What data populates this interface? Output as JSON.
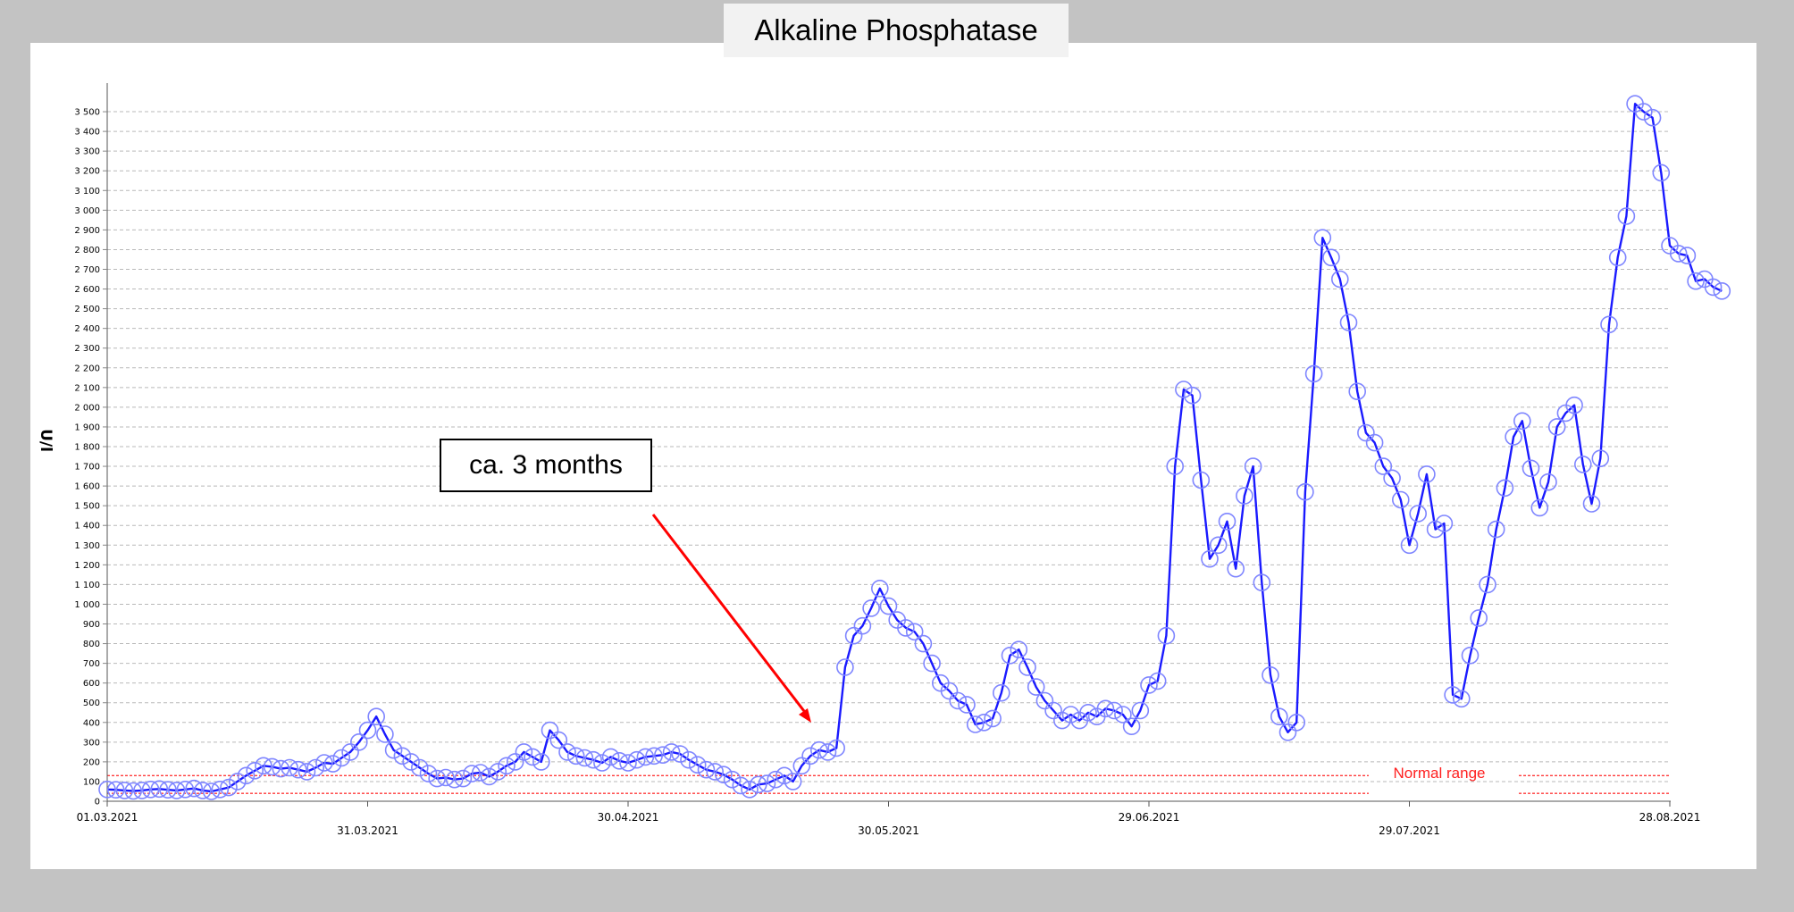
{
  "chart_data": {
    "type": "line",
    "title": "Alkaline Phosphatase",
    "ylabel": "U/l",
    "xlabel": "",
    "ylim": [
      0,
      3600
    ],
    "ytick_step": 100,
    "xlim": [
      "2021-03-01",
      "2021-08-28"
    ],
    "xtick_labels": [
      "01.03.2021",
      "31.03.2021",
      "30.04.2021",
      "30.05.2021",
      "29.06.2021",
      "29.07.2021",
      "28.08.2021"
    ],
    "xtick_dates": [
      "2021-03-01",
      "2021-03-31",
      "2021-04-30",
      "2021-05-30",
      "2021-06-29",
      "2021-07-29",
      "2021-08-28"
    ],
    "grid": true,
    "series": [
      {
        "color": "#1a1aff",
        "marker": "open-circle",
        "points": [
          [
            "2021-03-01",
            60
          ],
          [
            "2021-03-02",
            58
          ],
          [
            "2021-03-03",
            55
          ],
          [
            "2021-03-04",
            52
          ],
          [
            "2021-03-05",
            55
          ],
          [
            "2021-03-06",
            60
          ],
          [
            "2021-03-07",
            62
          ],
          [
            "2021-03-08",
            58
          ],
          [
            "2021-03-09",
            55
          ],
          [
            "2021-03-10",
            60
          ],
          [
            "2021-03-11",
            65
          ],
          [
            "2021-03-12",
            55
          ],
          [
            "2021-03-13",
            50
          ],
          [
            "2021-03-14",
            60
          ],
          [
            "2021-03-15",
            70
          ],
          [
            "2021-03-16",
            100
          ],
          [
            "2021-03-17",
            130
          ],
          [
            "2021-03-18",
            155
          ],
          [
            "2021-03-19",
            180
          ],
          [
            "2021-03-20",
            175
          ],
          [
            "2021-03-21",
            165
          ],
          [
            "2021-03-22",
            170
          ],
          [
            "2021-03-23",
            160
          ],
          [
            "2021-03-24",
            150
          ],
          [
            "2021-03-25",
            170
          ],
          [
            "2021-03-26",
            195
          ],
          [
            "2021-03-27",
            190
          ],
          [
            "2021-03-28",
            220
          ],
          [
            "2021-03-29",
            250
          ],
          [
            "2021-03-30",
            300
          ],
          [
            "2021-03-31",
            360
          ],
          [
            "2021-04-01",
            430
          ],
          [
            "2021-04-02",
            340
          ],
          [
            "2021-04-03",
            260
          ],
          [
            "2021-04-04",
            230
          ],
          [
            "2021-04-05",
            200
          ],
          [
            "2021-04-06",
            170
          ],
          [
            "2021-04-07",
            140
          ],
          [
            "2021-04-08",
            115
          ],
          [
            "2021-04-09",
            120
          ],
          [
            "2021-04-10",
            110
          ],
          [
            "2021-04-11",
            115
          ],
          [
            "2021-04-12",
            140
          ],
          [
            "2021-04-13",
            145
          ],
          [
            "2021-04-14",
            125
          ],
          [
            "2021-04-15",
            150
          ],
          [
            "2021-04-16",
            180
          ],
          [
            "2021-04-17",
            200
          ],
          [
            "2021-04-18",
            250
          ],
          [
            "2021-04-19",
            225
          ],
          [
            "2021-04-20",
            200
          ],
          [
            "2021-04-21",
            360
          ],
          [
            "2021-04-22",
            310
          ],
          [
            "2021-04-23",
            250
          ],
          [
            "2021-04-24",
            230
          ],
          [
            "2021-04-25",
            220
          ],
          [
            "2021-04-26",
            210
          ],
          [
            "2021-04-27",
            195
          ],
          [
            "2021-04-28",
            225
          ],
          [
            "2021-04-29",
            205
          ],
          [
            "2021-04-30",
            195
          ],
          [
            "2021-05-01",
            210
          ],
          [
            "2021-05-02",
            225
          ],
          [
            "2021-05-03",
            230
          ],
          [
            "2021-05-04",
            235
          ],
          [
            "2021-05-05",
            250
          ],
          [
            "2021-05-06",
            240
          ],
          [
            "2021-05-07",
            210
          ],
          [
            "2021-05-08",
            185
          ],
          [
            "2021-05-09",
            160
          ],
          [
            "2021-05-10",
            150
          ],
          [
            "2021-05-11",
            135
          ],
          [
            "2021-05-12",
            110
          ],
          [
            "2021-05-13",
            80
          ],
          [
            "2021-05-14",
            60
          ],
          [
            "2021-05-15",
            85
          ],
          [
            "2021-05-16",
            90
          ],
          [
            "2021-05-17",
            110
          ],
          [
            "2021-05-18",
            130
          ],
          [
            "2021-05-19",
            100
          ],
          [
            "2021-05-20",
            180
          ],
          [
            "2021-05-21",
            230
          ],
          [
            "2021-05-22",
            260
          ],
          [
            "2021-05-23",
            250
          ],
          [
            "2021-05-24",
            270
          ],
          [
            "2021-05-25",
            680
          ],
          [
            "2021-05-26",
            840
          ],
          [
            "2021-05-27",
            890
          ],
          [
            "2021-05-28",
            980
          ],
          [
            "2021-05-29",
            1080
          ],
          [
            "2021-05-30",
            990
          ],
          [
            "2021-05-31",
            920
          ],
          [
            "2021-06-01",
            880
          ],
          [
            "2021-06-02",
            860
          ],
          [
            "2021-06-03",
            800
          ],
          [
            "2021-06-04",
            700
          ],
          [
            "2021-06-05",
            600
          ],
          [
            "2021-06-06",
            560
          ],
          [
            "2021-06-07",
            510
          ],
          [
            "2021-06-08",
            490
          ],
          [
            "2021-06-09",
            390
          ],
          [
            "2021-06-10",
            400
          ],
          [
            "2021-06-11",
            420
          ],
          [
            "2021-06-12",
            550
          ],
          [
            "2021-06-13",
            740
          ],
          [
            "2021-06-14",
            770
          ],
          [
            "2021-06-15",
            680
          ],
          [
            "2021-06-16",
            580
          ],
          [
            "2021-06-17",
            510
          ],
          [
            "2021-06-18",
            460
          ],
          [
            "2021-06-19",
            410
          ],
          [
            "2021-06-20",
            440
          ],
          [
            "2021-06-21",
            410
          ],
          [
            "2021-06-22",
            450
          ],
          [
            "2021-06-23",
            430
          ],
          [
            "2021-06-24",
            470
          ],
          [
            "2021-06-25",
            460
          ],
          [
            "2021-06-26",
            440
          ],
          [
            "2021-06-27",
            380
          ],
          [
            "2021-06-28",
            460
          ],
          [
            "2021-06-29",
            590
          ],
          [
            "2021-06-30",
            610
          ],
          [
            "2021-07-01",
            840
          ],
          [
            "2021-07-02",
            1700
          ],
          [
            "2021-07-03",
            2090
          ],
          [
            "2021-07-04",
            2060
          ],
          [
            "2021-07-05",
            1630
          ],
          [
            "2021-07-06",
            1230
          ],
          [
            "2021-07-07",
            1300
          ],
          [
            "2021-07-08",
            1420
          ],
          [
            "2021-07-09",
            1180
          ],
          [
            "2021-07-10",
            1550
          ],
          [
            "2021-07-11",
            1700
          ],
          [
            "2021-07-12",
            1110
          ],
          [
            "2021-07-13",
            640
          ],
          [
            "2021-07-14",
            430
          ],
          [
            "2021-07-15",
            350
          ],
          [
            "2021-07-16",
            400
          ],
          [
            "2021-07-17",
            1570
          ],
          [
            "2021-07-18",
            2170
          ],
          [
            "2021-07-19",
            2860
          ],
          [
            "2021-07-20",
            2760
          ],
          [
            "2021-07-21",
            2650
          ],
          [
            "2021-07-22",
            2430
          ],
          [
            "2021-07-23",
            2080
          ],
          [
            "2021-07-24",
            1870
          ],
          [
            "2021-07-25",
            1820
          ],
          [
            "2021-07-26",
            1700
          ],
          [
            "2021-07-27",
            1640
          ],
          [
            "2021-07-28",
            1530
          ],
          [
            "2021-07-29",
            1300
          ],
          [
            "2021-07-30",
            1460
          ],
          [
            "2021-07-31",
            1660
          ],
          [
            "2021-08-01",
            1380
          ],
          [
            "2021-08-02",
            1410
          ],
          [
            "2021-08-03",
            540
          ],
          [
            "2021-08-04",
            520
          ],
          [
            "2021-08-05",
            740
          ],
          [
            "2021-08-06",
            930
          ],
          [
            "2021-08-07",
            1100
          ],
          [
            "2021-08-08",
            1380
          ],
          [
            "2021-08-09",
            1590
          ],
          [
            "2021-08-10",
            1850
          ],
          [
            "2021-08-11",
            1930
          ],
          [
            "2021-08-12",
            1690
          ],
          [
            "2021-08-13",
            1490
          ],
          [
            "2021-08-14",
            1620
          ],
          [
            "2021-08-15",
            1900
          ],
          [
            "2021-08-16",
            1970
          ],
          [
            "2021-08-17",
            2010
          ],
          [
            "2021-08-18",
            1710
          ],
          [
            "2021-08-19",
            1510
          ],
          [
            "2021-08-20",
            1740
          ],
          [
            "2021-08-21",
            2420
          ],
          [
            "2021-08-22",
            2760
          ],
          [
            "2021-08-23",
            2970
          ],
          [
            "2021-08-24",
            3540
          ],
          [
            "2021-08-25",
            3500
          ],
          [
            "2021-08-26",
            3470
          ],
          [
            "2021-08-27",
            3190
          ],
          [
            "2021-08-28",
            2820
          ],
          [
            "2021-08-29",
            2780
          ],
          [
            "2021-08-30",
            2770
          ],
          [
            "2021-08-31",
            2640
          ],
          [
            "2021-09-01",
            2650
          ],
          [
            "2021-09-02",
            2610
          ],
          [
            "2021-09-03",
            2590
          ]
        ]
      }
    ],
    "reference_band": {
      "label": "Normal range",
      "low": 40,
      "high": 130,
      "color": "#ff3b3b"
    },
    "annotations": [
      {
        "text": "ca. 3 months",
        "arrow_color": "#ff0000"
      }
    ]
  }
}
